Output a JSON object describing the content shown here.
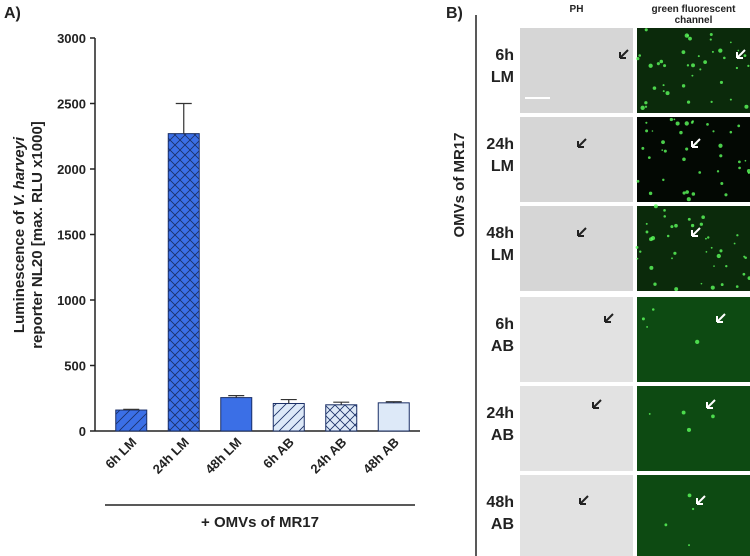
{
  "chart_data": {
    "type": "bar",
    "panel_label": "A)",
    "ylabel": {
      "prefix": "Luminescence of ",
      "italic": "V. harveyi",
      "line2": "reporter NL20 [max. RLU x1000]"
    },
    "xlabel": "+ OMVs of MR17",
    "categories": [
      "6h LM",
      "24h LM",
      "48h LM",
      "6h AB",
      "24h AB",
      "48h AB"
    ],
    "values": [
      160,
      2270,
      255,
      210,
      200,
      215
    ],
    "errors": [
      5,
      230,
      15,
      30,
      20,
      8
    ],
    "colors": [
      "#3b6fe6",
      "#3b6fe6",
      "#3b6fe6",
      "#dde9f8",
      "#dde9f8",
      "#dde9f8"
    ],
    "hatch": [
      "/",
      "x",
      "none",
      "/",
      "x",
      "none"
    ],
    "ylim": [
      0,
      3000
    ],
    "yticks": [
      0,
      500,
      1000,
      1500,
      2000,
      2500,
      3000
    ]
  },
  "panel_b": {
    "panel_label": "B)",
    "side_label": "OMVs of MR17",
    "columns": [
      [
        "PH"
      ],
      [
        "green fluorescent",
        "channel"
      ]
    ],
    "rows": [
      [
        "6h",
        "LM"
      ],
      [
        "24h",
        "LM"
      ],
      [
        "48h",
        "LM"
      ],
      [
        "6h",
        "AB"
      ],
      [
        "24h",
        "AB"
      ],
      [
        "48h",
        "AB"
      ]
    ]
  }
}
